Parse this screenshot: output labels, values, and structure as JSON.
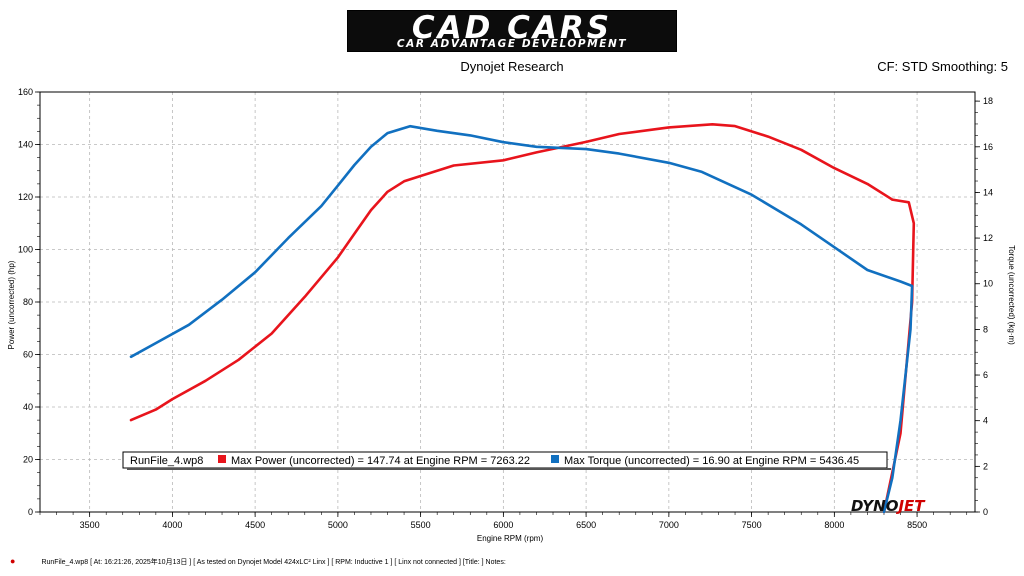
{
  "header": {
    "logo_main": "CAD CARS",
    "logo_sub": "CAR ADVANTAGE DEVELOPMENT",
    "subtitle": "Dynojet Research",
    "cf_info": "CF: STD Smoothing: 5"
  },
  "watermark": {
    "part1": "DYNO",
    "part2": "JET"
  },
  "legend": {
    "run_name": "RunFile_4.wp8",
    "power_label": "Max Power (uncorrected) = 147.74 at Engine RPM = 7263.22",
    "torque_label": "Max Torque (uncorrected) = 16.90 at Engine RPM = 5436.45"
  },
  "footer": {
    "text": "RunFile_4.wp8  [  At:  16:21:26,  2025年10月13日 ]  [ As tested on Dynojet Model 424xLC² Linx ]  [ RPM: Inductive 1 ]  [ Linx not connected ]  [Title:  ]   Notes:"
  },
  "chart_data": {
    "type": "line",
    "xlabel": "Engine RPM (rpm)",
    "ylabel": "Power (uncorrected) (hp)",
    "y2label": "Torque (uncorrected) (kg·m)",
    "xlim": [
      3200,
      8850
    ],
    "ylim": [
      0,
      160
    ],
    "y2lim": [
      0,
      18.4
    ],
    "x_ticks": [
      3500,
      4000,
      4500,
      5000,
      5500,
      6000,
      6500,
      7000,
      7500,
      8000,
      8500
    ],
    "y_ticks": [
      0,
      20,
      40,
      60,
      80,
      100,
      120,
      140,
      160
    ],
    "y2_ticks": [
      0,
      2,
      4,
      6,
      8,
      10,
      12,
      14,
      16,
      18
    ],
    "grid": true,
    "colors": {
      "power": "#e8141c",
      "torque": "#1170c0"
    },
    "series": [
      {
        "name": "Max Power (uncorrected)",
        "axis": "left",
        "x": [
          3750,
          3900,
          4000,
          4200,
          4400,
          4600,
          4800,
          5000,
          5100,
          5200,
          5300,
          5400,
          5500,
          5700,
          6000,
          6200,
          6500,
          6700,
          7000,
          7263,
          7400,
          7600,
          7800,
          8000,
          8200,
          8350,
          8450,
          8480,
          8470,
          8400,
          8300
        ],
        "y": [
          35,
          39,
          43,
          50,
          58,
          68,
          82,
          97,
          106,
          115,
          122,
          126,
          128,
          132,
          134,
          137,
          141,
          144,
          146.5,
          147.7,
          147,
          143,
          138,
          131,
          125,
          119,
          118,
          110,
          80,
          30,
          0
        ]
      },
      {
        "name": "Max Torque (uncorrected)",
        "axis": "right",
        "x": [
          3750,
          3900,
          4100,
          4300,
          4500,
          4700,
          4900,
          5000,
          5100,
          5200,
          5300,
          5436,
          5600,
          5800,
          6000,
          6200,
          6500,
          6700,
          7000,
          7200,
          7500,
          7800,
          8000,
          8200,
          8400,
          8470,
          8460,
          8400,
          8350,
          8300
        ],
        "y": [
          6.8,
          7.4,
          8.2,
          9.3,
          10.5,
          12.0,
          13.4,
          14.3,
          15.2,
          16.0,
          16.6,
          16.9,
          16.7,
          16.5,
          16.2,
          16.0,
          15.9,
          15.7,
          15.3,
          14.9,
          13.9,
          12.6,
          11.6,
          10.6,
          10.1,
          9.9,
          8.0,
          4.0,
          1.5,
          0
        ]
      }
    ]
  }
}
